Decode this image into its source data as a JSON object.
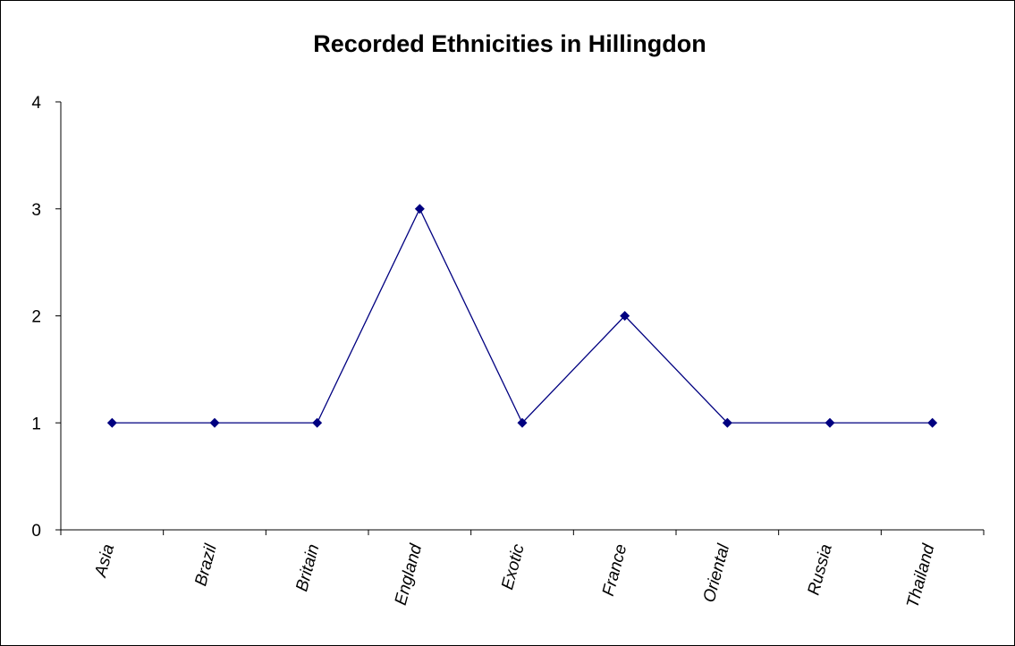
{
  "chart_data": {
    "type": "line",
    "title": "Recorded Ethnicities in Hillingdon",
    "xlabel": "",
    "ylabel": "",
    "categories": [
      "Asia",
      "Brazil",
      "Britain",
      "England",
      "Exotic",
      "France",
      "Oriental",
      "Russia",
      "Thailand"
    ],
    "series": [
      {
        "values": [
          1,
          1,
          1,
          3,
          1,
          2,
          1,
          1,
          1
        ],
        "color": "#000080",
        "marker": "diamond"
      }
    ],
    "ylim": [
      0,
      4
    ],
    "yticks": [
      "0",
      "1",
      "2",
      "3",
      "4"
    ],
    "grid": false,
    "legend": "none"
  }
}
